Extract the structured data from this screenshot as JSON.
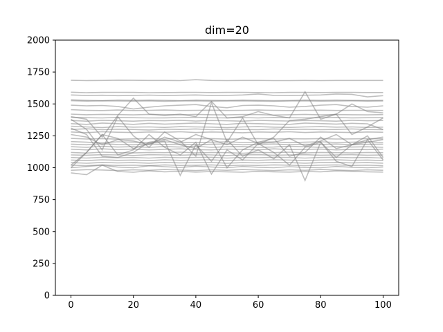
{
  "chart_data": {
    "type": "line",
    "title": "dim=20",
    "xlabel": "",
    "ylabel": "",
    "xlim": [
      -5,
      105
    ],
    "ylim": [
      0,
      2000
    ],
    "xticks": [
      0,
      20,
      40,
      60,
      80,
      100
    ],
    "yticks": [
      0,
      250,
      500,
      750,
      1000,
      1250,
      1500,
      1750,
      2000
    ],
    "grid": false,
    "line_color": "#808080",
    "x": [
      0,
      5,
      10,
      15,
      20,
      25,
      30,
      35,
      40,
      45,
      50,
      55,
      60,
      65,
      70,
      75,
      80,
      85,
      90,
      95,
      100
    ],
    "series": [
      {
        "values": [
          1685,
          1683,
          1684,
          1686,
          1685,
          1684,
          1684,
          1683,
          1690,
          1684,
          1683,
          1684,
          1684,
          1683,
          1683,
          1684,
          1683,
          1684,
          1684,
          1684,
          1684
        ]
      },
      {
        "values": [
          1592,
          1588,
          1590,
          1591,
          1590,
          1588,
          1589,
          1590,
          1591,
          1589,
          1590,
          1590,
          1589,
          1588,
          1590,
          1590,
          1589,
          1590,
          1590,
          1589,
          1589
        ]
      },
      {
        "values": [
          1570,
          1566,
          1568,
          1565,
          1567,
          1569,
          1566,
          1568,
          1570,
          1566,
          1567,
          1570,
          1578,
          1567,
          1566,
          1568,
          1570,
          1578,
          1575,
          1555,
          1565
        ]
      },
      {
        "values": [
          1532,
          1528,
          1526,
          1530,
          1528,
          1530,
          1528,
          1526,
          1530,
          1528,
          1527,
          1530,
          1528,
          1526,
          1527,
          1530,
          1528,
          1530,
          1528,
          1527,
          1528
        ]
      },
      {
        "values": [
          1525,
          1522,
          1524,
          1523,
          1522,
          1524,
          1521,
          1523,
          1524,
          1522,
          1523,
          1524,
          1522,
          1521,
          1523,
          1524,
          1522,
          1523,
          1524,
          1522,
          1523
        ]
      },
      {
        "values": [
          1490,
          1485,
          1488,
          1480,
          1460,
          1475,
          1485,
          1490,
          1495,
          1480,
          1470,
          1488,
          1490,
          1485,
          1475,
          1480,
          1490,
          1495,
          1480,
          1475,
          1485
        ]
      },
      {
        "values": [
          1455,
          1450,
          1448,
          1452,
          1448,
          1450,
          1452,
          1449,
          1450,
          1451,
          1449,
          1450,
          1452,
          1450,
          1448,
          1450,
          1451,
          1449,
          1450,
          1450,
          1449
        ]
      },
      {
        "values": [
          1400,
          1380,
          1240,
          1410,
          1545,
          1420,
          1410,
          1420,
          1400,
          1520,
          1390,
          1400,
          1440,
          1410,
          1390,
          1595,
          1380,
          1420,
          1500,
          1440,
          1430
        ]
      },
      {
        "values": [
          1420,
          1415,
          1418,
          1416,
          1414,
          1418,
          1416,
          1414,
          1418,
          1415,
          1414,
          1417,
          1416,
          1413,
          1415,
          1418,
          1414,
          1416,
          1415,
          1414,
          1416
        ]
      },
      {
        "values": [
          1395,
          1392,
          1390,
          1394,
          1392,
          1390,
          1391,
          1393,
          1395,
          1392,
          1391,
          1393,
          1390,
          1394,
          1392,
          1391,
          1392,
          1394,
          1391,
          1392,
          1393
        ]
      },
      {
        "values": [
          1370,
          1365,
          1372,
          1368,
          1365,
          1370,
          1368,
          1372,
          1366,
          1370,
          1368,
          1365,
          1372,
          1368,
          1366,
          1370,
          1368,
          1365,
          1372,
          1368,
          1370
        ]
      },
      {
        "values": [
          1345,
          1340,
          1350,
          1345,
          1340,
          1348,
          1342,
          1346,
          1350,
          1344,
          1340,
          1348,
          1345,
          1342,
          1340,
          1350,
          1346,
          1342,
          1348,
          1344,
          1300
        ]
      },
      {
        "values": [
          1325,
          1320,
          1315,
          1322,
          1318,
          1320,
          1316,
          1322,
          1320,
          1318,
          1315,
          1320,
          1322,
          1318,
          1316,
          1320,
          1322,
          1318,
          1320,
          1316,
          1318
        ]
      },
      {
        "values": [
          1300,
          1305,
          1298,
          1302,
          1300,
          1296,
          1302,
          1300,
          1304,
          1298,
          1302,
          1300,
          1298,
          1304,
          1300,
          1302,
          1298,
          1300,
          1304,
          1300,
          1298
        ]
      },
      {
        "values": [
          1280,
          1275,
          1282,
          1278,
          1276,
          1280,
          1278,
          1282,
          1276,
          1280,
          1278,
          1274,
          1280,
          1278,
          1282,
          1276,
          1280,
          1278,
          1276,
          1280,
          1278
        ]
      },
      {
        "values": [
          1380,
          1300,
          1140,
          1400,
          1250,
          1160,
          1280,
          1210,
          1090,
          1510,
          1200,
          1390,
          1180,
          1240,
          1370,
          1380,
          1400,
          1420,
          1260,
          1320,
          1390
        ]
      },
      {
        "values": [
          1260,
          1240,
          1180,
          1220,
          1210,
          1180,
          1240,
          1200,
          1260,
          1220,
          1180,
          1240,
          1190,
          1200,
          1230,
          1170,
          1210,
          1260,
          1180,
          1220,
          1240
        ]
      },
      {
        "values": [
          1230,
          1225,
          1228,
          1224,
          1226,
          1228,
          1225,
          1230,
          1226,
          1228,
          1224,
          1226,
          1228,
          1225,
          1227,
          1226,
          1228,
          1225,
          1226,
          1228,
          1226
        ]
      },
      {
        "values": [
          1205,
          1200,
          1195,
          1203,
          1200,
          1198,
          1202,
          1200,
          1196,
          1200,
          1203,
          1198,
          1200,
          1202,
          1196,
          1200,
          1203,
          1198,
          1200,
          1202,
          1198
        ]
      },
      {
        "values": [
          1185,
          1180,
          1188,
          1182,
          1180,
          1186,
          1182,
          1185,
          1180,
          1184,
          1186,
          1180,
          1182,
          1186,
          1180,
          1184,
          1182,
          1186,
          1180,
          1183,
          1185
        ]
      },
      {
        "values": [
          1165,
          1160,
          1168,
          1162,
          1165,
          1160,
          1166,
          1162,
          1168,
          1160,
          1164,
          1166,
          1160,
          1162,
          1168,
          1164,
          1160,
          1166,
          1162,
          1164,
          1160
        ]
      },
      {
        "values": [
          1145,
          1140,
          1148,
          1142,
          1146,
          1140,
          1144,
          1148,
          1142,
          1140,
          1146,
          1144,
          1140,
          1148,
          1142,
          1144,
          1146,
          1140,
          1144,
          1142,
          1146
        ]
      },
      {
        "values": [
          1000,
          1120,
          1260,
          1100,
          1140,
          1260,
          1160,
          1100,
          1200,
          950,
          1140,
          1060,
          1190,
          1120,
          1020,
          1160,
          1200,
          1080,
          1180,
          1250,
          1080
        ]
      },
      {
        "values": [
          1120,
          1115,
          1122,
          1118,
          1116,
          1120,
          1118,
          1122,
          1116,
          1120,
          1118,
          1114,
          1120,
          1118,
          1122,
          1116,
          1120,
          1118,
          1116,
          1120,
          1118
        ]
      },
      {
        "values": [
          1100,
          1098,
          1102,
          1100,
          1096,
          1102,
          1100,
          1098,
          1102,
          1100,
          1096,
          1100,
          1102,
          1098,
          1100,
          1102,
          1098,
          1100,
          1102,
          1098,
          1100
        ]
      },
      {
        "values": [
          1080,
          1076,
          1082,
          1078,
          1080,
          1076,
          1082,
          1078,
          1080,
          1082,
          1076,
          1080,
          1078,
          1082,
          1080,
          1076,
          1080,
          1082,
          1078,
          1080,
          1076
        ]
      },
      {
        "values": [
          1060,
          1056,
          1062,
          1058,
          1060,
          1056,
          1062,
          1058,
          1060,
          1062,
          1056,
          1060,
          1058,
          1062,
          1060,
          1056,
          1060,
          1062,
          1058,
          1060,
          1056
        ]
      },
      {
        "values": [
          1040,
          1035,
          1042,
          1038,
          1040,
          1036,
          1042,
          1038,
          1040,
          1042,
          1036,
          1040,
          1038,
          1042,
          1040,
          1036,
          1040,
          1042,
          1038,
          1040,
          1036
        ]
      },
      {
        "values": [
          1020,
          1016,
          1022,
          1018,
          1020,
          1016,
          1022,
          1018,
          1020,
          1022,
          1016,
          1020,
          1018,
          1022,
          1020,
          1016,
          1020,
          1022,
          1018,
          1020,
          1016
        ]
      },
      {
        "values": [
          1000,
          1010,
          1020,
          1005,
          1000,
          1015,
          1008,
          1002,
          1012,
          1006,
          1000,
          1010,
          1004,
          1000,
          1008,
          1002,
          1000,
          1010,
          1004,
          1000,
          1006
        ]
      },
      {
        "values": [
          980,
          985,
          982,
          978,
          984,
          980,
          986,
          982,
          978,
          984,
          980,
          986,
          982,
          978,
          984,
          980,
          986,
          982,
          978,
          984,
          980
        ]
      },
      {
        "values": [
          960,
          945,
          1020,
          970,
          965,
          975,
          968,
          972,
          966,
          970,
          968,
          965,
          972,
          968,
          966,
          970,
          968,
          975,
          972,
          968,
          966
        ]
      },
      {
        "values": [
          1020,
          1120,
          1260,
          1230,
          1150,
          1190,
          1210,
          940,
          1180,
          1050,
          1220,
          1090,
          1140,
          1070,
          1180,
          900,
          1200,
          1050,
          1010,
          1220,
          1060
        ]
      },
      {
        "values": [
          1310,
          1260,
          1090,
          1080,
          1120,
          1200,
          1220,
          1180,
          1150,
          1220,
          1000,
          1140,
          1200,
          1230,
          1090,
          1120,
          1240,
          1150,
          1180,
          1200,
          1220
        ]
      }
    ]
  }
}
